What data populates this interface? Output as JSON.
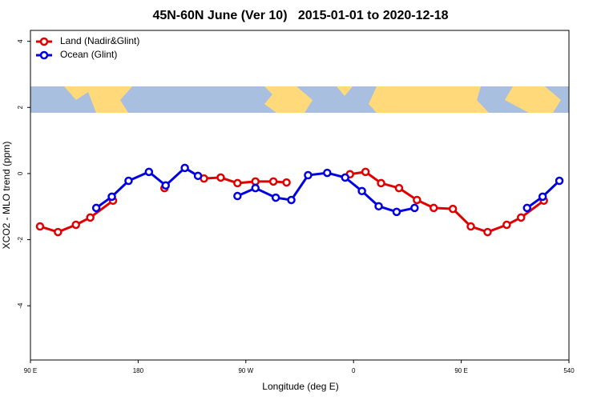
{
  "chart_data": {
    "type": "line",
    "title": "45N-60N June (Ver 10)   2015-01-01 to 2020-12-18",
    "x_label": "Longitude (deg E)",
    "y_label": "XCO2 - MLO trend (ppm)",
    "xlim": [
      90,
      540
    ],
    "ylim": [
      -5.64,
      4.33
    ],
    "xticks": [
      {
        "value": 90,
        "label": "90 E"
      },
      180,
      {
        "value": 270,
        "label": "90 W"
      },
      {
        "value": 360,
        "label": "0"
      },
      {
        "value": 450,
        "label": "90 E"
      },
      540
    ],
    "yticks": [
      -4,
      -2,
      0,
      2,
      4
    ],
    "legend": "top-left",
    "series": [
      {
        "name": "Land (Nadir&Glint)",
        "color": "#e00000",
        "x": [
          98,
          113,
          128,
          140,
          159,
          null,
          202,
          null,
          235,
          249,
          263,
          278,
          293,
          304,
          null,
          357,
          370,
          383,
          398,
          413,
          427,
          443,
          458,
          472,
          488,
          500,
          519
        ],
        "values": [
          -1.6,
          -1.77,
          -1.55,
          -1.33,
          -0.82,
          null,
          -0.44,
          null,
          -0.15,
          -0.12,
          -0.29,
          -0.24,
          -0.24,
          -0.27,
          null,
          -0.02,
          0.05,
          -0.29,
          -0.44,
          -0.8,
          -1.04,
          -1.07,
          -1.6,
          -1.77,
          -1.55,
          -1.33,
          -0.82
        ]
      },
      {
        "name": "Ocean (Glint)",
        "color": "#0000e0",
        "x": [
          145,
          158,
          172,
          189,
          203,
          219,
          230,
          null,
          263,
          278,
          295,
          308,
          322,
          338,
          353,
          367,
          381,
          396,
          411,
          null,
          505,
          518,
          532
        ],
        "values": [
          -1.04,
          -0.7,
          -0.22,
          0.05,
          -0.36,
          0.17,
          -0.07,
          null,
          -0.68,
          -0.44,
          -0.73,
          -0.8,
          -0.05,
          0.02,
          -0.12,
          -0.53,
          -0.99,
          -1.16,
          -1.04,
          null,
          -1.04,
          -0.7,
          -0.22
        ]
      }
    ]
  }
}
